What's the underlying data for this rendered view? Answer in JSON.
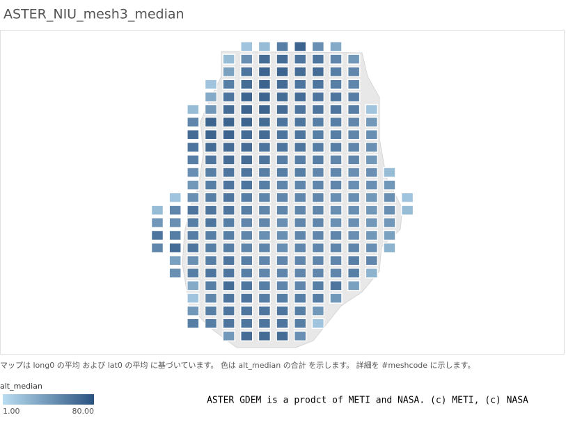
{
  "chart_data": {
    "type": "grid-map",
    "title": "ASTER_NIU_mesh3_median",
    "rows": [
      [
        null,
        null,
        null,
        null,
        null,
        15,
        20,
        55,
        70,
        45,
        30,
        null,
        null,
        null,
        null
      ],
      [
        null,
        null,
        null,
        null,
        20,
        45,
        65,
        65,
        60,
        60,
        50,
        40,
        null,
        null,
        null
      ],
      [
        null,
        null,
        null,
        null,
        35,
        60,
        70,
        70,
        65,
        65,
        55,
        50,
        null,
        null,
        null
      ],
      [
        null,
        null,
        null,
        15,
        55,
        65,
        70,
        65,
        60,
        60,
        55,
        50,
        null,
        null,
        null
      ],
      [
        null,
        null,
        null,
        30,
        60,
        70,
        70,
        65,
        65,
        60,
        60,
        55,
        null,
        null,
        null
      ],
      [
        null,
        null,
        20,
        40,
        65,
        70,
        70,
        65,
        60,
        60,
        60,
        55,
        15,
        null,
        null
      ],
      [
        null,
        null,
        50,
        70,
        70,
        70,
        65,
        60,
        60,
        55,
        55,
        50,
        40,
        null,
        null
      ],
      [
        null,
        null,
        65,
        70,
        70,
        65,
        65,
        60,
        60,
        55,
        55,
        50,
        45,
        null,
        null
      ],
      [
        null,
        null,
        60,
        65,
        65,
        65,
        60,
        60,
        60,
        55,
        55,
        50,
        45,
        null,
        null
      ],
      [
        null,
        null,
        55,
        60,
        65,
        65,
        60,
        55,
        55,
        55,
        50,
        50,
        40,
        null,
        null
      ],
      [
        null,
        null,
        45,
        55,
        60,
        60,
        55,
        55,
        55,
        50,
        50,
        45,
        45,
        20,
        null
      ],
      [
        null,
        null,
        40,
        55,
        60,
        60,
        55,
        50,
        50,
        50,
        50,
        45,
        45,
        40,
        null
      ],
      [
        null,
        15,
        45,
        55,
        60,
        55,
        50,
        50,
        50,
        50,
        45,
        45,
        40,
        45,
        15
      ],
      [
        20,
        50,
        60,
        60,
        60,
        55,
        50,
        50,
        50,
        50,
        45,
        45,
        40,
        45,
        20
      ],
      [
        40,
        45,
        55,
        60,
        55,
        50,
        50,
        45,
        50,
        50,
        45,
        45,
        40,
        40,
        null
      ],
      [
        60,
        55,
        55,
        55,
        55,
        50,
        45,
        45,
        50,
        50,
        50,
        45,
        40,
        35,
        null
      ],
      [
        50,
        65,
        60,
        55,
        55,
        50,
        50,
        45,
        50,
        50,
        50,
        50,
        45,
        25,
        null
      ],
      [
        null,
        35,
        45,
        55,
        60,
        55,
        50,
        50,
        50,
        50,
        50,
        55,
        50,
        null,
        null
      ],
      [
        null,
        45,
        55,
        60,
        60,
        55,
        50,
        50,
        50,
        50,
        50,
        55,
        25,
        null,
        null
      ],
      [
        null,
        null,
        30,
        55,
        65,
        60,
        55,
        50,
        50,
        55,
        60,
        35,
        null,
        null,
        null
      ],
      [
        null,
        null,
        15,
        50,
        60,
        60,
        55,
        55,
        55,
        55,
        40,
        null,
        null,
        null,
        null
      ],
      [
        null,
        null,
        40,
        55,
        60,
        60,
        60,
        60,
        55,
        40,
        null,
        null,
        null,
        null,
        null
      ],
      [
        null,
        null,
        55,
        55,
        60,
        60,
        60,
        60,
        55,
        15,
        null,
        null,
        null,
        null,
        null
      ],
      [
        null,
        null,
        null,
        null,
        40,
        65,
        65,
        65,
        45,
        null,
        null,
        null,
        null,
        null,
        null
      ]
    ],
    "color_scale": {
      "title": "alt_median",
      "colors": [
        "#b9ddf1",
        "#2a5280"
      ],
      "range": [
        {
          "value": 1,
          "label": "1.00"
        },
        {
          "value": 80,
          "label": "80.00"
        }
      ]
    },
    "caption": "マップは long0 の平均 および lat0 の平均 に基づいています。 色は alt_median の合計 を示します。 詳細を #meshcode に示します。",
    "credit": "ASTER GDEM is a prodct of METI and NASA. (c) METI, (c) NASA"
  }
}
